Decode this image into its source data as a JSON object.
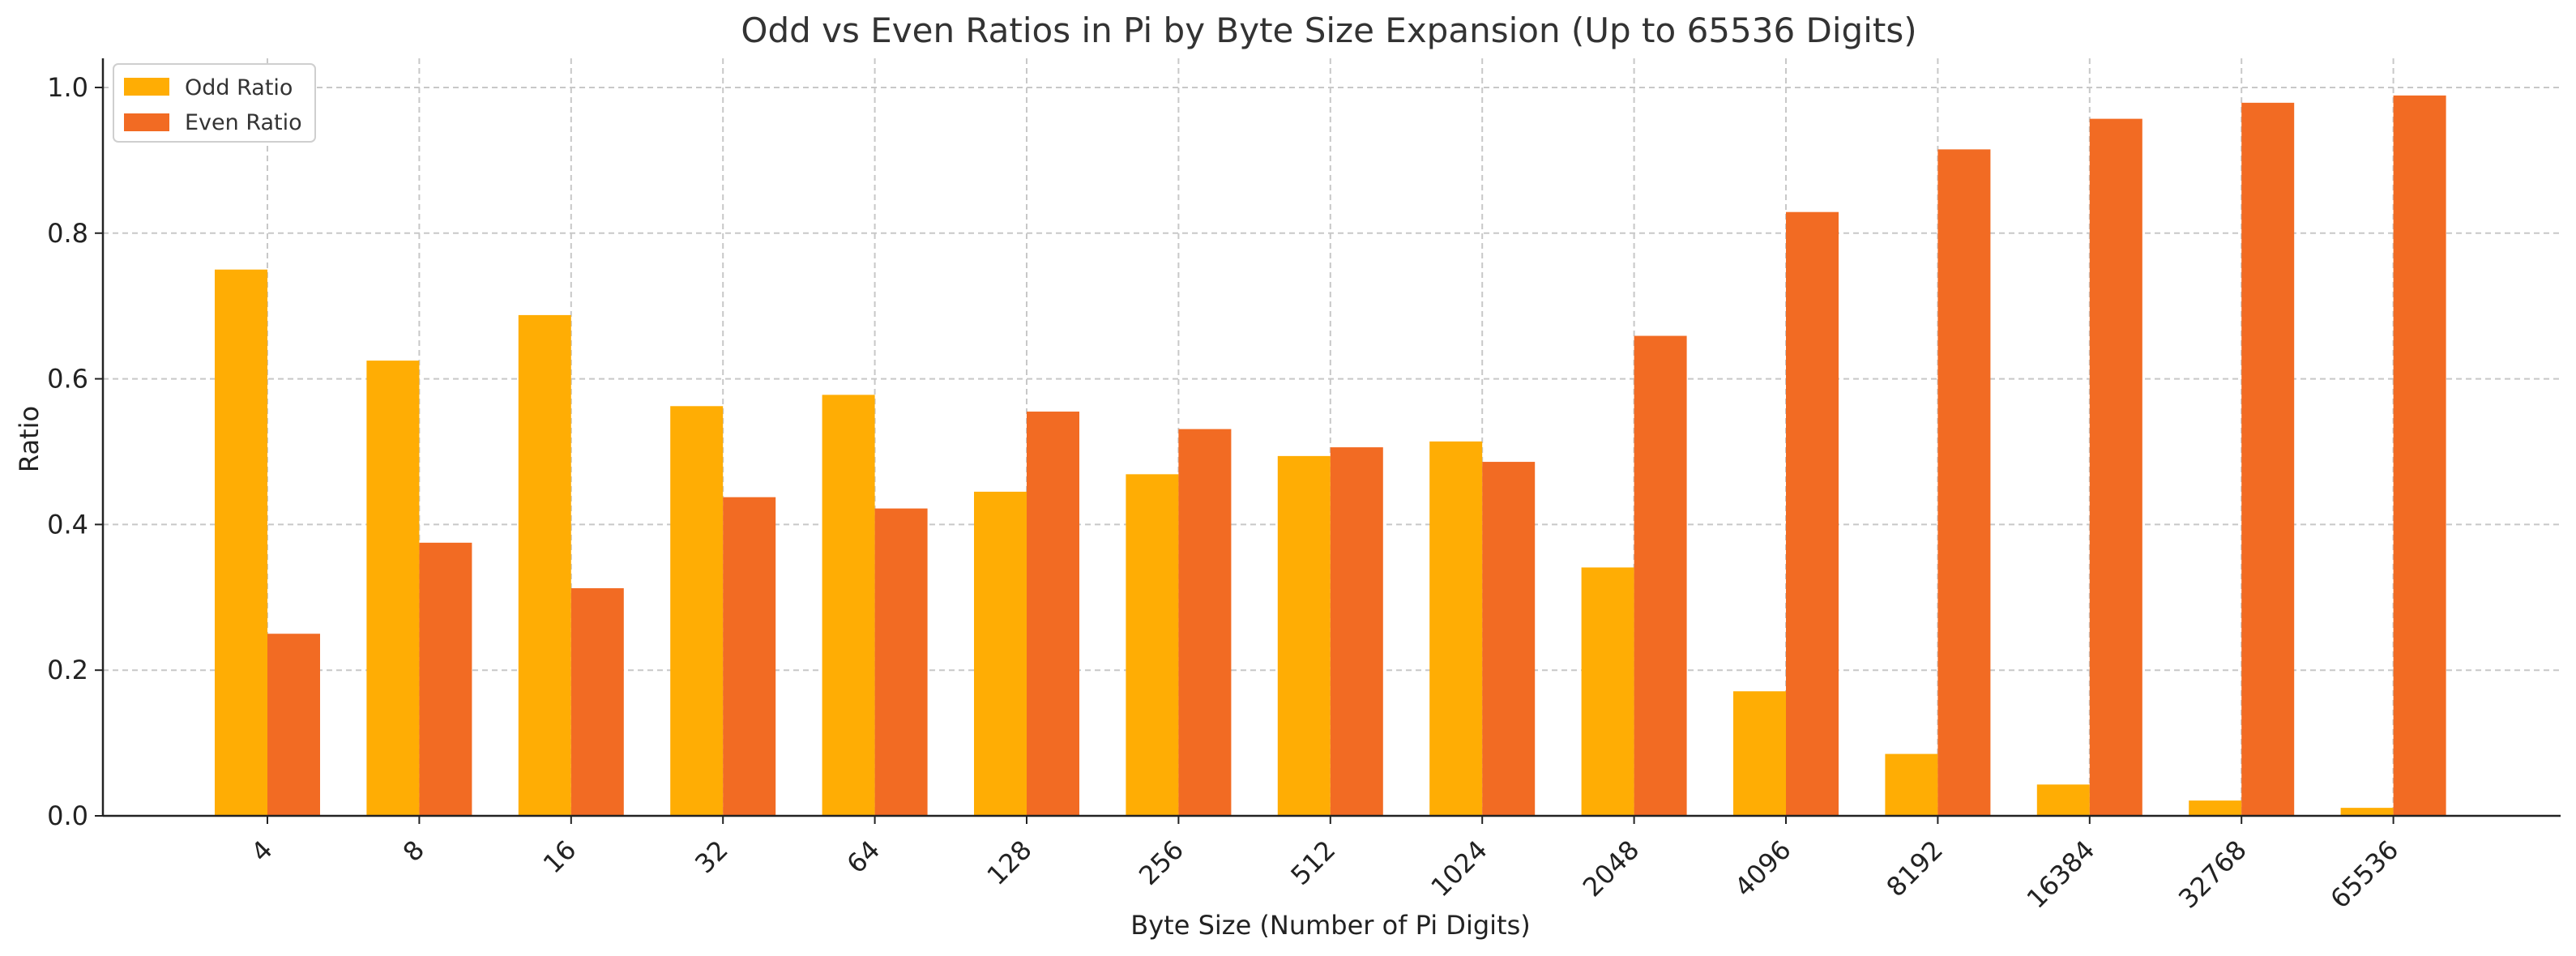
{
  "chart_data": {
    "type": "bar",
    "title": "Odd vs Even Ratios in Pi by Byte Size Expansion (Up to 65536 Digits)",
    "xlabel": "Byte Size (Number of Pi Digits)",
    "ylabel": "Ratio",
    "categories": [
      "4",
      "8",
      "16",
      "32",
      "64",
      "128",
      "256",
      "512",
      "1024",
      "2048",
      "4096",
      "8192",
      "16384",
      "32768",
      "65536"
    ],
    "series": [
      {
        "name": "Odd Ratio",
        "color": "#FFAD04",
        "values": [
          0.75,
          0.625,
          0.6875,
          0.5625,
          0.578,
          0.445,
          0.469,
          0.494,
          0.514,
          0.341,
          0.171,
          0.085,
          0.043,
          0.021,
          0.011
        ]
      },
      {
        "name": "Even Ratio",
        "color": "#F26B23",
        "values": [
          0.25,
          0.375,
          0.3125,
          0.4375,
          0.422,
          0.555,
          0.531,
          0.506,
          0.486,
          0.659,
          0.829,
          0.915,
          0.957,
          0.979,
          0.989
        ]
      }
    ],
    "ylim": [
      0,
      1.04
    ],
    "yticks": [
      "0.0",
      "0.2",
      "0.4",
      "0.6",
      "0.8",
      "1.0"
    ],
    "grid": true,
    "legend_position": "top-left"
  }
}
